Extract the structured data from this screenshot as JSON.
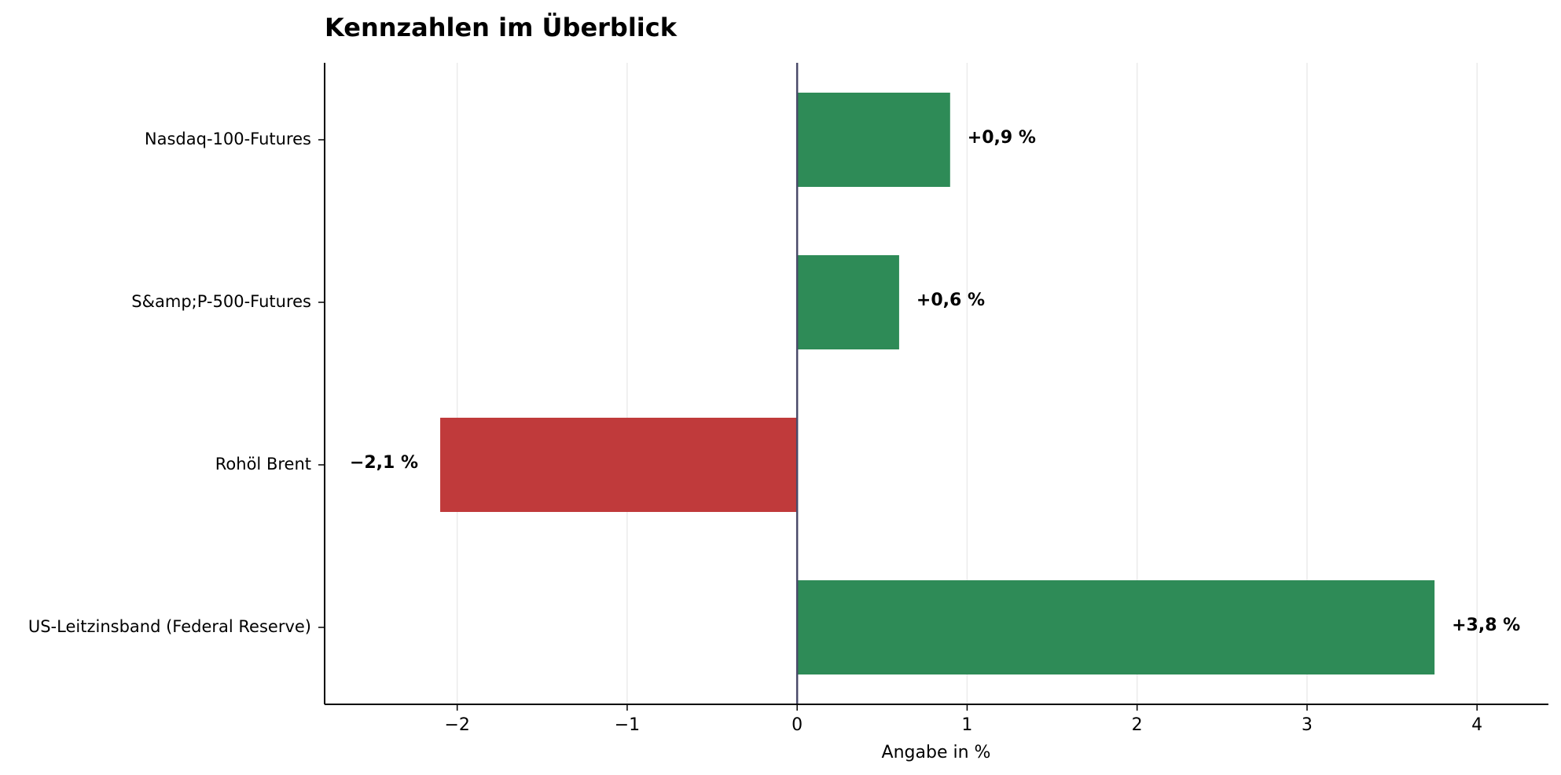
{
  "chart_data": {
    "type": "bar",
    "orientation": "horizontal",
    "title": "Kennzahlen im Überblick",
    "xlabel": "Angabe in %",
    "ylabel": "",
    "categories": [
      "Nasdaq-100-Futures",
      "S&amp;P-500-Futures",
      "Rohöl Brent",
      "US-Leitzinsband (Federal Reserve)"
    ],
    "values": [
      0.9,
      0.6,
      -2.1,
      3.75
    ],
    "value_labels": [
      "+0,9 %",
      "+0,6 %",
      "−2,1 %",
      "+3,8 %"
    ],
    "xlim": [
      -2.78,
      4.42
    ],
    "xticks": [
      -2,
      -1,
      0,
      1,
      2,
      3,
      4
    ],
    "xtick_labels": [
      "−2",
      "−1",
      "0",
      "1",
      "2",
      "3",
      "4"
    ],
    "grid": "vertical",
    "legend": "none",
    "colors": {
      "positive": "#2e8b57",
      "negative": "#c03a3b",
      "zero_line": "#4a4a6a",
      "grid": "#ebebeb",
      "axis": "#000000"
    }
  }
}
